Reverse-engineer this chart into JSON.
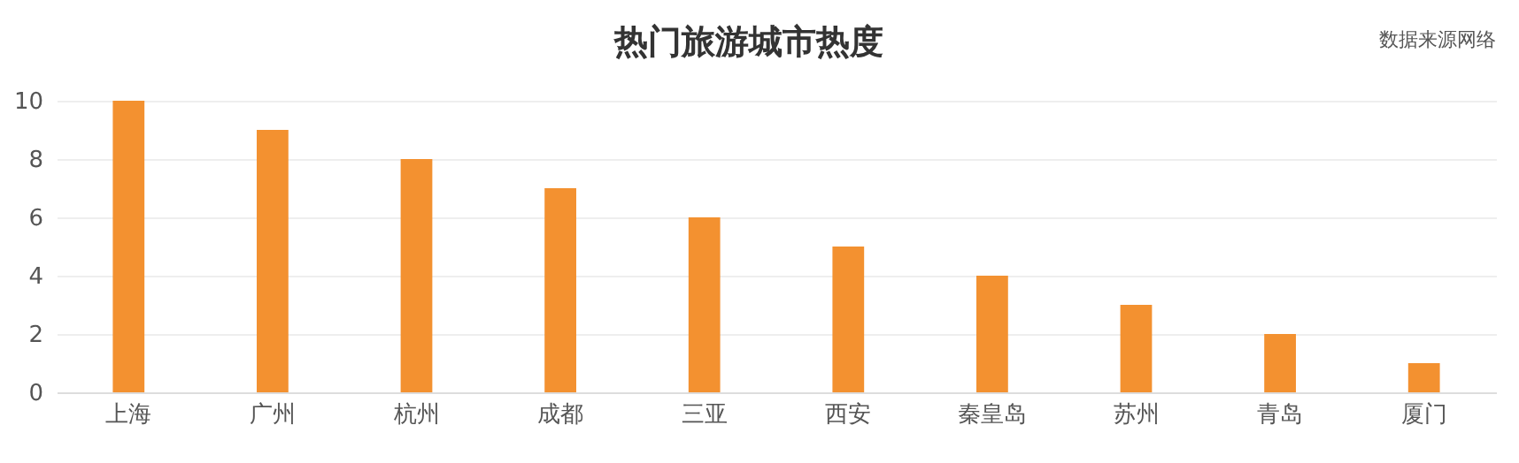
{
  "chart_data": {
    "type": "bar",
    "title": "热门旅游城市热度",
    "annotations": [
      "数据来源网络"
    ],
    "categories": [
      "上海",
      "广州",
      "杭州",
      "成都",
      "三亚",
      "西安",
      "秦皇岛",
      "苏州",
      "青岛",
      "厦门"
    ],
    "values": [
      10,
      9,
      8,
      7,
      6,
      5,
      4,
      3,
      2,
      1
    ],
    "color": "#f39130",
    "ylim": [
      0,
      10
    ],
    "yticks": [
      0,
      2,
      4,
      6,
      8,
      10
    ],
    "grid": "y"
  }
}
